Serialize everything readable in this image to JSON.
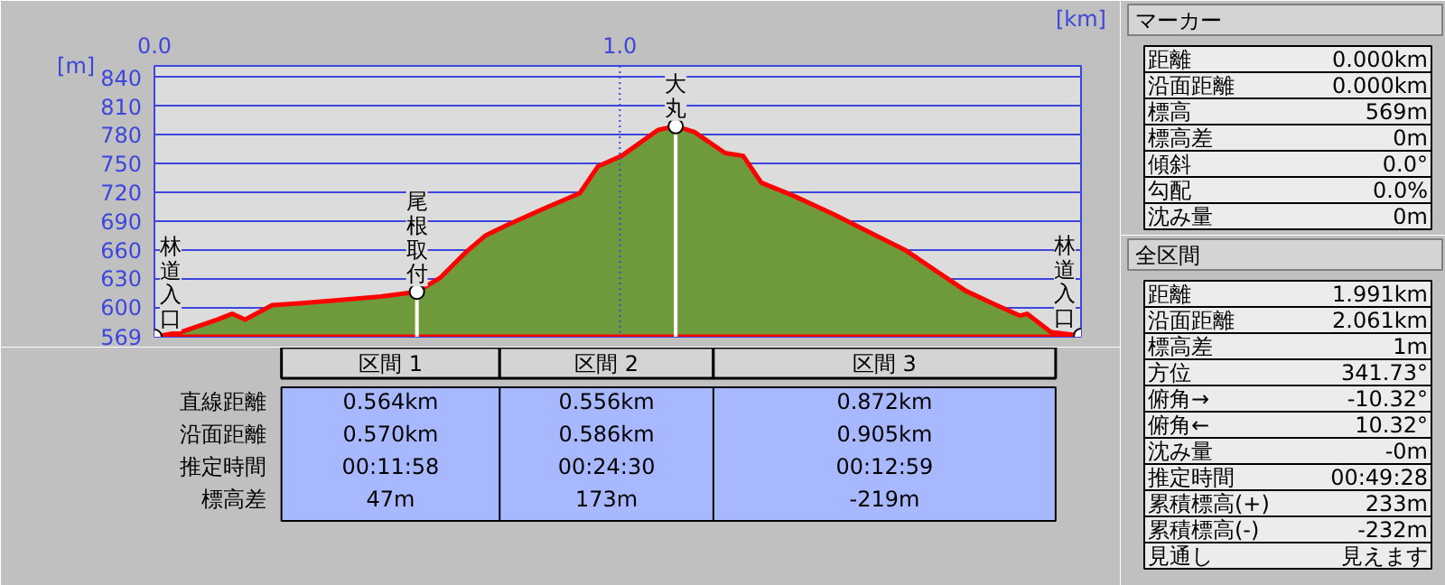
{
  "chart_data": [
    {
      "type": "area",
      "xlabel": "[km]",
      "ylabel": "[m]",
      "xlim": [
        0,
        1.991
      ],
      "ylim": [
        569,
        852
      ],
      "xticks": [
        {
          "value": 0,
          "label": "0.0"
        },
        {
          "value": 1,
          "label": "1.0"
        }
      ],
      "yticks": [
        569,
        600,
        630,
        660,
        690,
        720,
        750,
        780,
        810,
        840
      ],
      "grid": "y",
      "ref_lines": [
        {
          "axis": "x",
          "value": 1,
          "color": "#3c46dc",
          "line_style": "dotted"
        }
      ],
      "x": [
        0,
        0.058,
        0.136,
        0.167,
        0.195,
        0.253,
        0.311,
        0.389,
        0.486,
        0.564,
        0.615,
        0.673,
        0.712,
        0.759,
        0.837,
        0.914,
        0.953,
        1.004,
        1.082,
        1.12,
        1.16,
        1.226,
        1.265,
        1.304,
        1.37,
        1.459,
        1.615,
        1.743,
        1.809,
        1.86,
        1.875,
        1.926,
        1.991
      ],
      "series": [
        {
          "color": "#6f9a3c",
          "values": [
            569,
            574,
            587,
            593,
            587,
            602,
            604,
            607,
            611,
            616,
            631,
            659,
            675,
            686,
            703,
            719,
            747,
            758,
            785,
            789,
            783,
            761,
            758,
            730,
            717,
            697,
            659,
            617,
            602,
            591,
            593,
            574,
            570
          ]
        }
      ],
      "annotations": [
        {
          "text": "林道入口",
          "x": 0,
          "y": 569
        },
        {
          "text": "尾根取付",
          "x": 0.564,
          "y": 616
        },
        {
          "text": "大丸",
          "x": 1.12,
          "y": 789
        },
        {
          "text": "林道入口",
          "x": 1.991,
          "y": 570
        }
      ]
    },
    {
      "type": "other",
      "categories": [
        "区間 1",
        "区間 2",
        "区間 3"
      ],
      "y_categories": [
        "直線距離",
        "沿面距離",
        "推定時間",
        "標高差"
      ],
      "cell_labels": [
        [
          "0.564km",
          "0.556km",
          "0.872km"
        ],
        [
          "0.570km",
          "0.586km",
          "0.905km"
        ],
        [
          "00:11:58",
          "00:24:30",
          "00:12:59"
        ],
        [
          "47m",
          "173m",
          "-219m"
        ]
      ]
    },
    {
      "type": "other",
      "title": "マーカー",
      "y_categories": [
        "距離",
        "沿面距離",
        "標高",
        "標高差",
        "傾斜",
        "勾配",
        "沈み量"
      ],
      "cell_labels": [
        [
          "0.000km"
        ],
        [
          "0.000km"
        ],
        [
          "569m"
        ],
        [
          "0m"
        ],
        [
          "0.0°"
        ],
        [
          "0.0%"
        ],
        [
          "0m"
        ]
      ]
    },
    {
      "type": "other",
      "title": "全区間",
      "y_categories": [
        "距離",
        "沿面距離",
        "標高差",
        "方位",
        "俯角→",
        "俯角←",
        "沈み量",
        "推定時間",
        "累積標高(+)",
        "累積標高(-)",
        "見通し"
      ],
      "cell_labels": [
        [
          "1.991km"
        ],
        [
          "2.061km"
        ],
        [
          "1m"
        ],
        [
          "341.73°"
        ],
        [
          "-10.32°"
        ],
        [
          "10.32°"
        ],
        [
          "-0m"
        ],
        [
          "00:49:28"
        ],
        [
          "233m"
        ],
        [
          "-232m"
        ],
        [
          "見えます"
        ]
      ]
    }
  ]
}
